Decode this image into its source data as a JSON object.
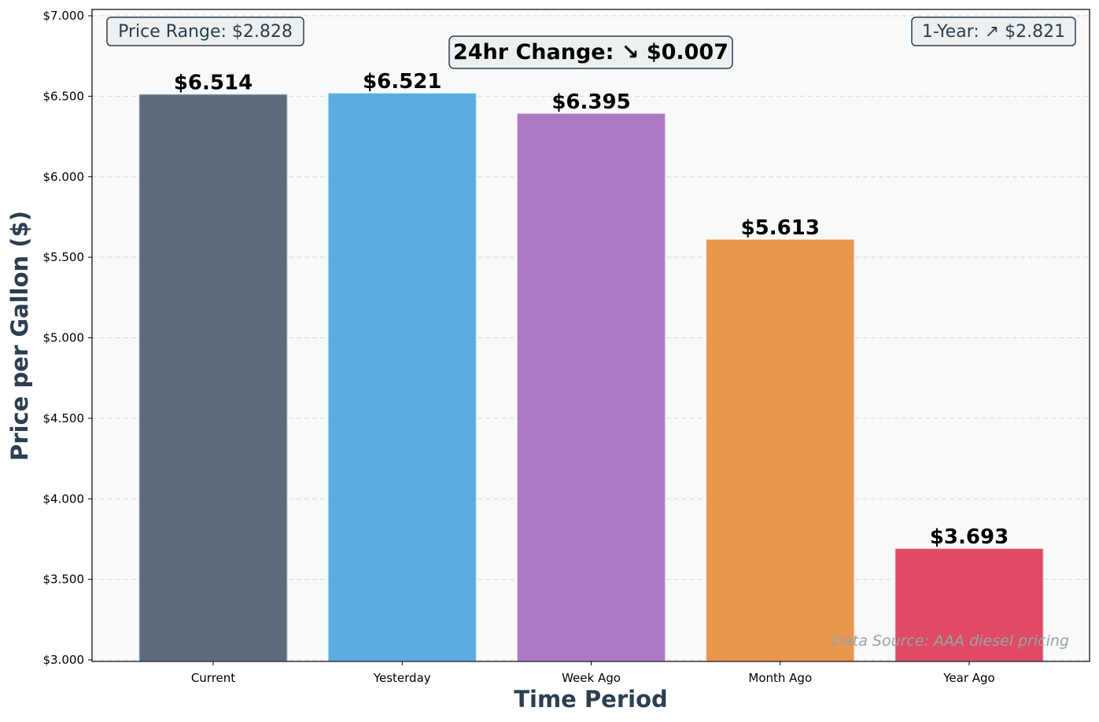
{
  "chart_data": {
    "type": "bar",
    "categories": [
      "Current",
      "Yesterday",
      "Week Ago",
      "Month Ago",
      "Year Ago"
    ],
    "values": [
      6.514,
      6.521,
      6.395,
      5.613,
      3.693
    ],
    "value_labels": [
      "$6.514",
      "$6.521",
      "$6.395",
      "$5.613",
      "$3.693"
    ],
    "colors": [
      "#34495e",
      "#3498db",
      "#9b59b6",
      "#e67e22",
      "#d91e3f"
    ],
    "xlabel": "Time Period",
    "ylabel": "Price per Gallon ($)",
    "ylim": [
      3.0,
      7.0
    ],
    "yticks": [
      3.0,
      3.5,
      4.0,
      4.5,
      5.0,
      5.5,
      6.0,
      6.5,
      7.0
    ],
    "ytick_labels": [
      "$3.000",
      "$3.500",
      "$4.000",
      "$4.500",
      "$5.000",
      "$5.500",
      "$6.000",
      "$6.500",
      "$7.000"
    ],
    "grid": "y-dashed",
    "annotations": {
      "price_range": "Price Range: $2.828",
      "change_24hr": "24hr Change: ↘ $0.007",
      "one_year": "1-Year: ↗ $2.821",
      "source": "Data Source: AAA diesel pricing"
    }
  }
}
